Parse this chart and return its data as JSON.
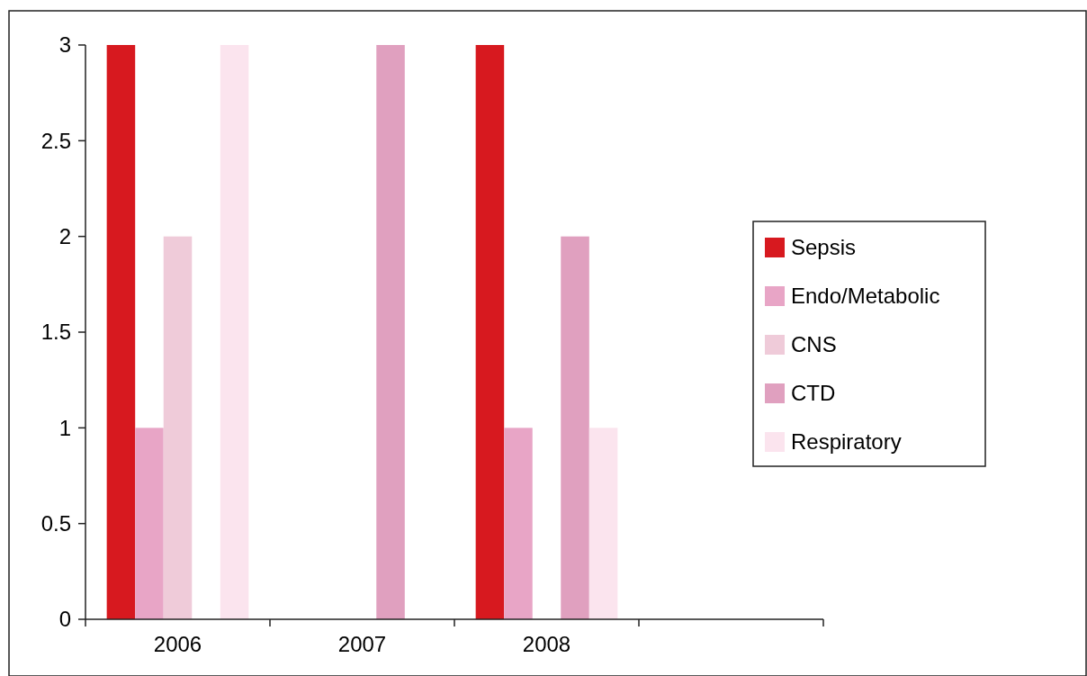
{
  "chart_data": {
    "type": "bar",
    "categories": [
      "2006",
      "2007",
      "2008",
      null
    ],
    "series": [
      {
        "name": "Sepsis",
        "color": "#d7191f",
        "values": [
          3,
          0,
          3,
          null
        ]
      },
      {
        "name": "Endo/Metabolic",
        "color": "#e8a5c6",
        "values": [
          1,
          0,
          1,
          null
        ]
      },
      {
        "name": "CNS",
        "color": "#efcbd9",
        "values": [
          2,
          0,
          0,
          null
        ]
      },
      {
        "name": "CTD",
        "color": "#e0a0bf",
        "values": [
          0,
          3,
          2,
          null
        ]
      },
      {
        "name": "Respiratory",
        "color": "#fbe4ee",
        "values": [
          3,
          0,
          1,
          null
        ]
      }
    ],
    "ylim": [
      0,
      3
    ],
    "yticks": [
      0,
      0.5,
      1,
      1.5,
      2,
      2.5,
      3
    ],
    "grid": false,
    "legend": "right"
  }
}
